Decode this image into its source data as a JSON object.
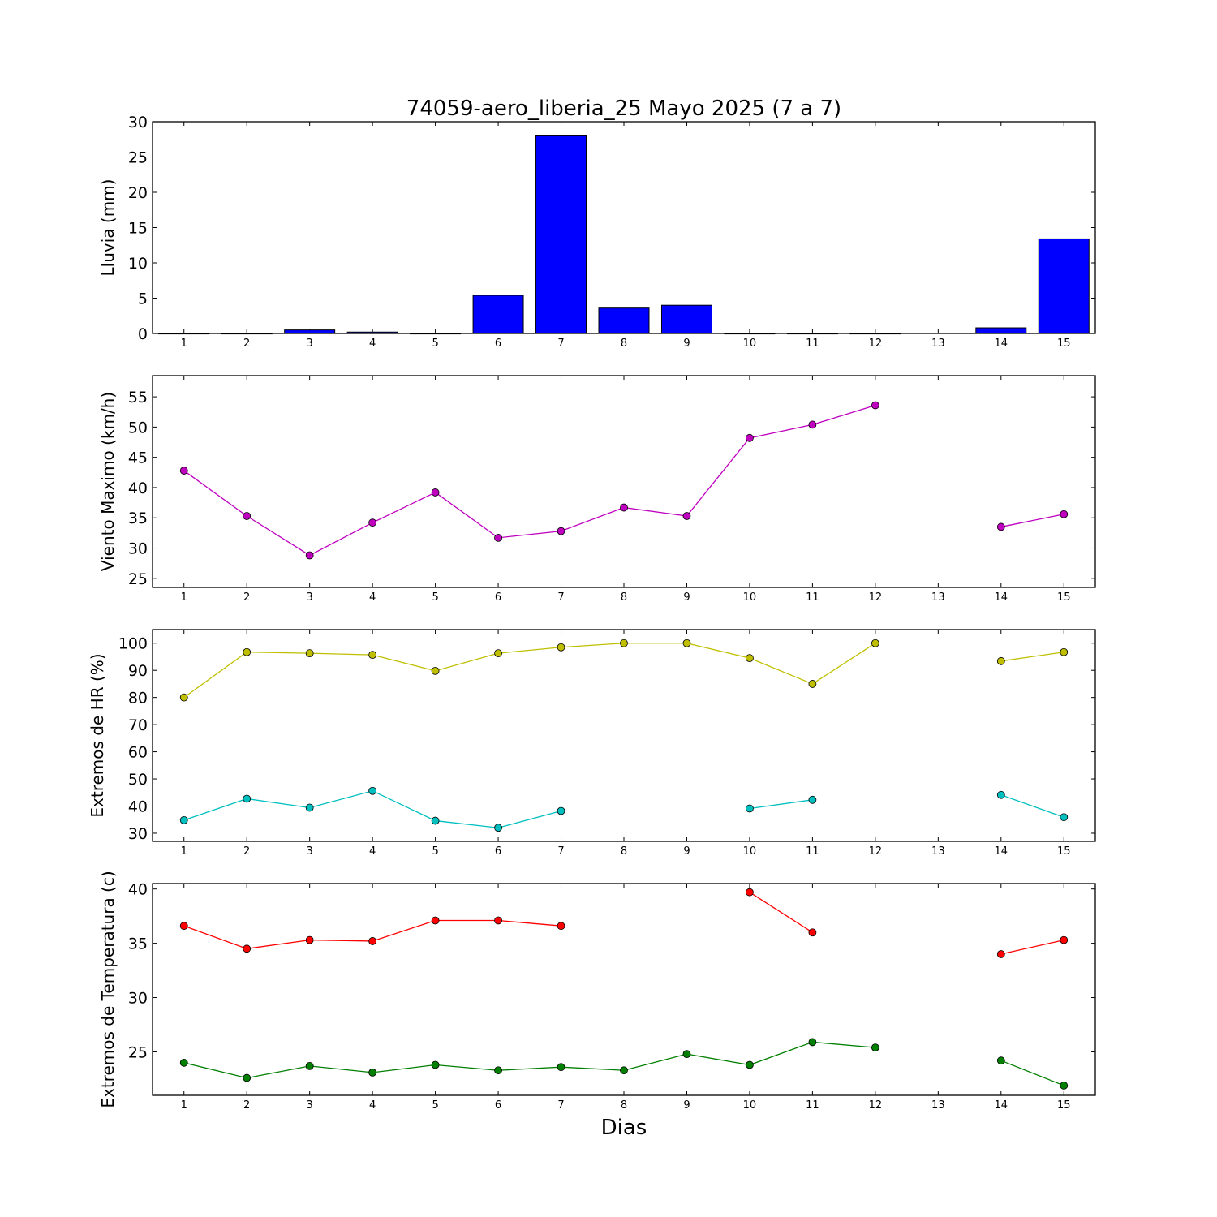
{
  "chart_data": {
    "title": "74059-aero_liberia_25 Mayo 2025  (7 a 7)",
    "xlabel": "Dias",
    "days": [
      1,
      2,
      3,
      4,
      5,
      6,
      7,
      8,
      9,
      10,
      11,
      12,
      13,
      14,
      15
    ],
    "xlim": [
      0.5,
      15.5
    ],
    "panels": [
      {
        "id": "rain",
        "type": "bar",
        "ylabel": "Lluvia (mm)",
        "ylim": [
          0,
          30
        ],
        "yticks": [
          0,
          5,
          10,
          15,
          20,
          25,
          30
        ],
        "series": [
          {
            "color": "#0000ff",
            "values": [
              0,
              0,
              0.5,
              0.2,
              0,
              5.4,
              28.0,
              3.6,
              4.0,
              0,
              0,
              0,
              null,
              0.8,
              13.4
            ]
          }
        ]
      },
      {
        "id": "wind",
        "type": "line",
        "ylabel": "Viento Maximo (km/h)",
        "ylim": [
          23.5,
          58.5
        ],
        "yticks": [
          25,
          30,
          35,
          40,
          45,
          50,
          55
        ],
        "series": [
          {
            "color": "#bf00bf",
            "values": [
              42.8,
              35.3,
              28.8,
              34.2,
              39.2,
              31.7,
              32.8,
              36.7,
              35.3,
              48.2,
              50.4,
              53.6,
              null,
              33.5,
              35.6
            ]
          }
        ]
      },
      {
        "id": "humidity",
        "type": "line",
        "ylabel": "Extremos de HR (%)",
        "ylim": [
          27,
          105
        ],
        "yticks": [
          30,
          40,
          50,
          60,
          70,
          80,
          90,
          100
        ],
        "series": [
          {
            "color": "#bfbf00",
            "values": [
              80.0,
              96.7,
              96.3,
              95.7,
              89.8,
              96.3,
              98.5,
              100.0,
              100.0,
              94.5,
              85.0,
              100.0,
              null,
              93.4,
              96.7
            ]
          },
          {
            "color": "#00bfbf",
            "values": [
              34.8,
              42.7,
              39.4,
              45.6,
              34.6,
              32.0,
              38.2,
              null,
              null,
              39.1,
              42.3,
              null,
              null,
              44.1,
              35.9
            ]
          }
        ]
      },
      {
        "id": "temperature",
        "type": "line",
        "ylabel": "Extremos de Temperatura (c)",
        "ylim": [
          21,
          40.5
        ],
        "yticks": [
          25,
          30,
          35,
          40
        ],
        "series": [
          {
            "color": "#ff0000",
            "values": [
              36.6,
              34.5,
              35.3,
              35.2,
              37.1,
              37.1,
              36.6,
              null,
              null,
              39.7,
              36.0,
              null,
              null,
              34.0,
              35.3
            ]
          },
          {
            "color": "#007f00",
            "values": [
              24.0,
              22.6,
              23.7,
              23.1,
              23.8,
              23.3,
              23.6,
              23.3,
              24.8,
              23.8,
              25.9,
              25.4,
              null,
              24.2,
              21.9
            ]
          }
        ]
      }
    ]
  }
}
